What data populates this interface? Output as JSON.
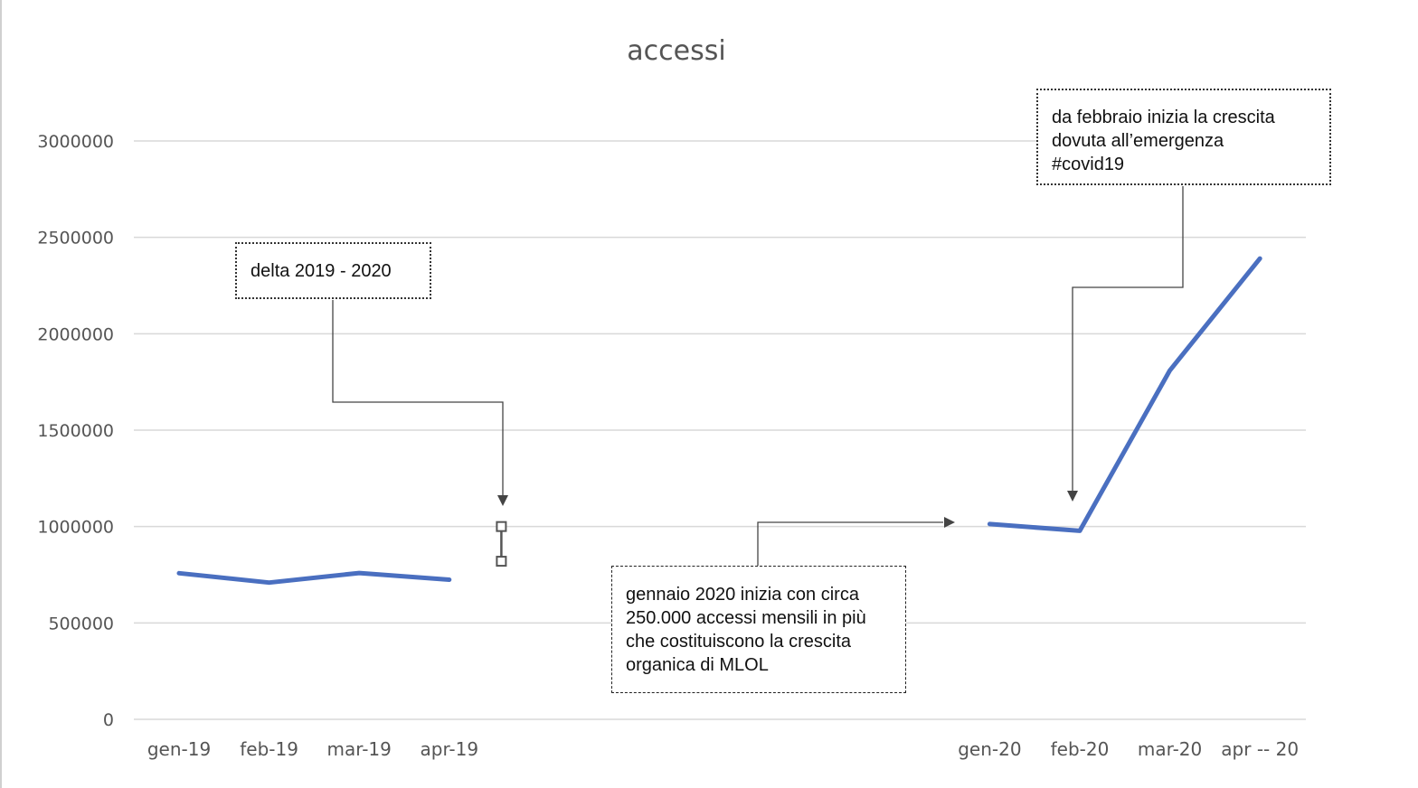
{
  "chart_data": {
    "type": "line",
    "title": "accessi",
    "categories": [
      "gen-19",
      "feb-19",
      "mar-19",
      "apr-19",
      "",
      "",
      "",
      "",
      "",
      "gen-20",
      "feb-20",
      "mar-20",
      "apr -- 20"
    ],
    "series": [
      {
        "name": "",
        "color": "#4a6fc0",
        "values": [
          758000,
          709000,
          759000,
          724000,
          null,
          null,
          null,
          null,
          null,
          1013000,
          978000,
          1810000,
          2390000
        ]
      }
    ],
    "error_bar": {
      "category_index": 4,
      "low": 820000,
      "high": 1000000
    },
    "yticks": [
      0,
      500000,
      1000000,
      1500000,
      2000000,
      2500000,
      3000000
    ],
    "ylim": [
      0,
      3000000
    ],
    "xlabel": "",
    "ylabel": "",
    "grid": true,
    "annotations": [
      {
        "id": "delta",
        "text": "delta 2019 - 2020",
        "style": "dotted"
      },
      {
        "id": "covid",
        "text": "da febbraio inizia la crescita\ndovuta all’emergenza\n#covid19",
        "style": "dotted"
      },
      {
        "id": "organic",
        "text": "gennaio 2020 inizia con circa\n250.000 accessi mensili in più\nche costituiscono  la crescita\norganica di MLOL",
        "style": "dashed"
      }
    ]
  }
}
